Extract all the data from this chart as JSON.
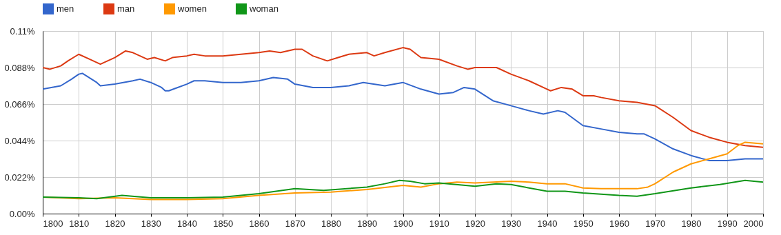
{
  "chart_data": {
    "type": "line",
    "xlim": [
      1800,
      2000
    ],
    "xticks": [
      1800,
      1810,
      1820,
      1830,
      1840,
      1850,
      1860,
      1870,
      1880,
      1890,
      1900,
      1910,
      1920,
      1930,
      1940,
      1950,
      1960,
      1970,
      1980,
      1990,
      2000
    ],
    "ylim": [
      0,
      0.11
    ],
    "yticks": [
      {
        "value": 0,
        "label": "0.00%"
      },
      {
        "value": 0.022,
        "label": "0.022%"
      },
      {
        "value": 0.044,
        "label": "0.044%"
      },
      {
        "value": 0.066,
        "label": "0.066%"
      },
      {
        "value": 0.088,
        "label": "0.088%"
      },
      {
        "value": 0.11,
        "label": "0.11%"
      }
    ],
    "grid": true,
    "legend": "top left",
    "line_style": "solid",
    "marker": "none",
    "series": [
      {
        "name": "men",
        "color": "#3366cc",
        "x": [
          1800,
          1805,
          1808,
          1810,
          1811,
          1815,
          1816,
          1820,
          1825,
          1827,
          1830,
          1833,
          1834,
          1835,
          1840,
          1842,
          1845,
          1850,
          1855,
          1860,
          1864,
          1868,
          1870,
          1875,
          1880,
          1885,
          1889,
          1895,
          1900,
          1905,
          1910,
          1914,
          1917,
          1920,
          1925,
          1930,
          1935,
          1939,
          1943,
          1945,
          1950,
          1955,
          1960,
          1965,
          1967,
          1970,
          1975,
          1980,
          1985,
          1990,
          1995,
          2000
        ],
        "values": [
          0.075,
          0.077,
          0.081,
          0.084,
          0.0845,
          0.079,
          0.077,
          0.078,
          0.08,
          0.081,
          0.079,
          0.076,
          0.074,
          0.074,
          0.078,
          0.08,
          0.08,
          0.079,
          0.079,
          0.08,
          0.082,
          0.081,
          0.078,
          0.076,
          0.076,
          0.077,
          0.079,
          0.077,
          0.079,
          0.075,
          0.072,
          0.073,
          0.076,
          0.075,
          0.068,
          0.065,
          0.062,
          0.06,
          0.062,
          0.061,
          0.053,
          0.051,
          0.049,
          0.048,
          0.048,
          0.045,
          0.039,
          0.035,
          0.032,
          0.032,
          0.033,
          0.033
        ]
      },
      {
        "name": "man",
        "color": "#dc3912",
        "x": [
          1800,
          1802,
          1805,
          1807,
          1810,
          1813,
          1816,
          1820,
          1823,
          1825,
          1829,
          1831,
          1834,
          1836,
          1840,
          1842,
          1845,
          1850,
          1855,
          1860,
          1863,
          1866,
          1870,
          1872,
          1875,
          1879,
          1882,
          1885,
          1890,
          1892,
          1895,
          1900,
          1902,
          1905,
          1910,
          1915,
          1918,
          1920,
          1926,
          1930,
          1935,
          1940,
          1941,
          1944,
          1947,
          1950,
          1953,
          1955,
          1960,
          1965,
          1970,
          1975,
          1980,
          1985,
          1990,
          1995,
          2000
        ],
        "values": [
          0.088,
          0.087,
          0.089,
          0.092,
          0.096,
          0.093,
          0.09,
          0.094,
          0.098,
          0.097,
          0.093,
          0.094,
          0.092,
          0.094,
          0.095,
          0.096,
          0.095,
          0.095,
          0.096,
          0.097,
          0.098,
          0.097,
          0.099,
          0.099,
          0.095,
          0.092,
          0.094,
          0.096,
          0.097,
          0.095,
          0.097,
          0.1,
          0.099,
          0.094,
          0.093,
          0.089,
          0.087,
          0.088,
          0.088,
          0.084,
          0.08,
          0.075,
          0.074,
          0.076,
          0.075,
          0.071,
          0.071,
          0.07,
          0.068,
          0.067,
          0.065,
          0.058,
          0.05,
          0.046,
          0.043,
          0.041,
          0.04
        ]
      },
      {
        "name": "women",
        "color": "#ff9900",
        "x": [
          1800,
          1810,
          1820,
          1830,
          1840,
          1850,
          1860,
          1870,
          1880,
          1890,
          1900,
          1905,
          1910,
          1915,
          1920,
          1925,
          1930,
          1935,
          1940,
          1945,
          1950,
          1955,
          1960,
          1965,
          1968,
          1970,
          1975,
          1980,
          1985,
          1990,
          1993,
          1995,
          2000
        ],
        "values": [
          0.01,
          0.009,
          0.0095,
          0.0085,
          0.0085,
          0.009,
          0.011,
          0.0125,
          0.013,
          0.0145,
          0.017,
          0.016,
          0.018,
          0.019,
          0.0185,
          0.019,
          0.0195,
          0.019,
          0.018,
          0.018,
          0.0155,
          0.015,
          0.015,
          0.015,
          0.016,
          0.018,
          0.025,
          0.03,
          0.033,
          0.036,
          0.041,
          0.043,
          0.042
        ]
      },
      {
        "name": "woman",
        "color": "#109618",
        "x": [
          1800,
          1810,
          1815,
          1822,
          1830,
          1840,
          1850,
          1860,
          1870,
          1878,
          1890,
          1895,
          1899,
          1902,
          1906,
          1910,
          1920,
          1926,
          1930,
          1940,
          1945,
          1950,
          1960,
          1965,
          1970,
          1980,
          1988,
          1995,
          2000
        ],
        "values": [
          0.01,
          0.0095,
          0.009,
          0.011,
          0.0095,
          0.0095,
          0.01,
          0.012,
          0.015,
          0.014,
          0.016,
          0.018,
          0.02,
          0.0195,
          0.018,
          0.0185,
          0.0165,
          0.018,
          0.0175,
          0.0135,
          0.0135,
          0.0125,
          0.011,
          0.0105,
          0.012,
          0.0155,
          0.0175,
          0.02,
          0.019
        ]
      }
    ]
  }
}
